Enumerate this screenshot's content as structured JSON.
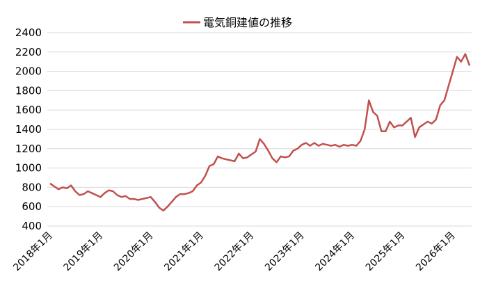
{
  "chart_data": {
    "type": "line",
    "title": "",
    "xlabel": "",
    "ylabel": "",
    "ylim": [
      400,
      2400
    ],
    "yticks": [
      400,
      600,
      800,
      1000,
      1200,
      1400,
      1600,
      1800,
      2000,
      2200,
      2400
    ],
    "xlim": [
      "2018-01",
      "2026-06"
    ],
    "x_tick_labels": [
      "2018年1月",
      "2019年1月",
      "2020年1月",
      "2021年1月",
      "2022年1月",
      "2023年1月",
      "2024年1月",
      "2025年1月",
      "2026年1月"
    ],
    "grid": true,
    "legend_position": "top-center",
    "series": [
      {
        "name": "電気銅建値の推移",
        "color": "#c0504d",
        "points": [
          [
            "2018-01",
            840
          ],
          [
            "2018-02",
            810
          ],
          [
            "2018-03",
            780
          ],
          [
            "2018-04",
            800
          ],
          [
            "2018-05",
            790
          ],
          [
            "2018-06",
            820
          ],
          [
            "2018-07",
            760
          ],
          [
            "2018-08",
            720
          ],
          [
            "2018-09",
            730
          ],
          [
            "2018-10",
            760
          ],
          [
            "2018-11",
            740
          ],
          [
            "2018-12",
            720
          ],
          [
            "2019-01",
            700
          ],
          [
            "2019-02",
            740
          ],
          [
            "2019-03",
            770
          ],
          [
            "2019-04",
            760
          ],
          [
            "2019-05",
            720
          ],
          [
            "2019-06",
            700
          ],
          [
            "2019-07",
            710
          ],
          [
            "2019-08",
            680
          ],
          [
            "2019-09",
            680
          ],
          [
            "2019-10",
            670
          ],
          [
            "2019-11",
            680
          ],
          [
            "2019-12",
            690
          ],
          [
            "2020-01",
            700
          ],
          [
            "2020-02",
            650
          ],
          [
            "2020-03",
            590
          ],
          [
            "2020-04",
            560
          ],
          [
            "2020-05",
            600
          ],
          [
            "2020-06",
            650
          ],
          [
            "2020-07",
            700
          ],
          [
            "2020-08",
            730
          ],
          [
            "2020-09",
            730
          ],
          [
            "2020-10",
            740
          ],
          [
            "2020-11",
            760
          ],
          [
            "2020-12",
            820
          ],
          [
            "2021-01",
            850
          ],
          [
            "2021-02",
            920
          ],
          [
            "2021-03",
            1020
          ],
          [
            "2021-04",
            1040
          ],
          [
            "2021-05",
            1120
          ],
          [
            "2021-06",
            1100
          ],
          [
            "2021-07",
            1090
          ],
          [
            "2021-08",
            1080
          ],
          [
            "2021-09",
            1070
          ],
          [
            "2021-10",
            1150
          ],
          [
            "2021-11",
            1100
          ],
          [
            "2021-12",
            1110
          ],
          [
            "2022-01",
            1140
          ],
          [
            "2022-02",
            1170
          ],
          [
            "2022-03",
            1300
          ],
          [
            "2022-04",
            1250
          ],
          [
            "2022-05",
            1180
          ],
          [
            "2022-06",
            1100
          ],
          [
            "2022-07",
            1060
          ],
          [
            "2022-08",
            1120
          ],
          [
            "2022-09",
            1110
          ],
          [
            "2022-10",
            1120
          ],
          [
            "2022-11",
            1180
          ],
          [
            "2022-12",
            1200
          ],
          [
            "2023-01",
            1240
          ],
          [
            "2023-02",
            1260
          ],
          [
            "2023-03",
            1230
          ],
          [
            "2023-04",
            1260
          ],
          [
            "2023-05",
            1230
          ],
          [
            "2023-06",
            1250
          ],
          [
            "2023-07",
            1240
          ],
          [
            "2023-08",
            1230
          ],
          [
            "2023-09",
            1240
          ],
          [
            "2023-10",
            1220
          ],
          [
            "2023-11",
            1240
          ],
          [
            "2023-12",
            1230
          ],
          [
            "2024-01",
            1240
          ],
          [
            "2024-02",
            1230
          ],
          [
            "2024-03",
            1280
          ],
          [
            "2024-04",
            1400
          ],
          [
            "2024-05",
            1700
          ],
          [
            "2024-06",
            1580
          ],
          [
            "2024-07",
            1540
          ],
          [
            "2024-08",
            1380
          ],
          [
            "2024-09",
            1380
          ],
          [
            "2024-10",
            1480
          ],
          [
            "2024-11",
            1420
          ],
          [
            "2024-12",
            1440
          ],
          [
            "2025-01",
            1440
          ],
          [
            "2025-02",
            1480
          ],
          [
            "2025-03",
            1520
          ],
          [
            "2025-04",
            1320
          ],
          [
            "2025-05",
            1420
          ],
          [
            "2025-06",
            1450
          ],
          [
            "2025-07",
            1480
          ],
          [
            "2025-08",
            1460
          ],
          [
            "2025-09",
            1500
          ],
          [
            "2025-10",
            1650
          ],
          [
            "2025-11",
            1700
          ],
          [
            "2025-12",
            1850
          ],
          [
            "2026-01",
            2000
          ],
          [
            "2026-02",
            2150
          ],
          [
            "2026-03",
            2100
          ],
          [
            "2026-04",
            2180
          ],
          [
            "2026-05",
            2060
          ]
        ]
      }
    ]
  }
}
